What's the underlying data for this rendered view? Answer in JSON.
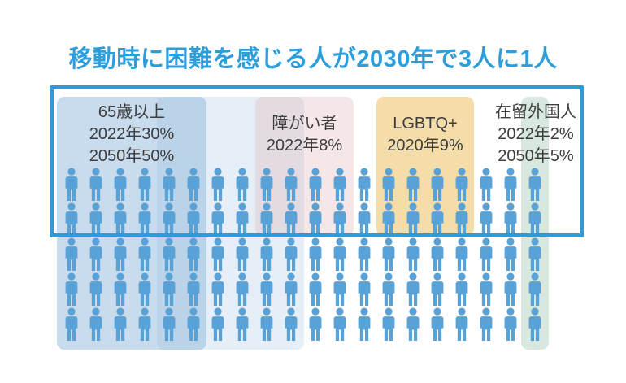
{
  "title": "移動時に困難を感じる人が2030年で3人に1人",
  "groups": [
    {
      "name": "65歳以上",
      "lines": [
        "65歳以上",
        "2022年30%",
        "2050年50%"
      ]
    },
    {
      "name": "障がい者",
      "lines": [
        "障がい者",
        "2022年8%"
      ]
    },
    {
      "name": "LGBTQ+",
      "lines": [
        "LGBTQ+",
        "2020年9%"
      ]
    },
    {
      "name": "在留外国人",
      "lines": [
        "在留外国人",
        "2022年2%",
        "2050年5%"
      ]
    }
  ],
  "chart_data": {
    "type": "pictograph",
    "title": "移動時に困難を感じる人が2030年で3人に1人",
    "icon": "person",
    "icon_color": "#58a2d8",
    "title_color": "#2e9edb",
    "text_color": "#3d3d3d",
    "grid": {
      "rows": 5,
      "cols": 20,
      "total_icons": 100,
      "icon_unit_pct": 1
    },
    "frame": {
      "meaning": "2030年で3人に1人",
      "encloses_rows": [
        1,
        2
      ],
      "color": "#2d9bd8"
    },
    "series": [
      {
        "name": "65歳以上",
        "values": [
          {
            "label": "2022年",
            "pct": 30
          },
          {
            "label": "2050年",
            "pct": 50
          }
        ],
        "panel_colors": [
          "#c9dcee",
          "#e6eff7"
        ]
      },
      {
        "name": "障がい者",
        "values": [
          {
            "label": "2022年",
            "pct": 8
          }
        ],
        "panel_colors": [
          "#f6e9e9"
        ]
      },
      {
        "name": "LGBTQ+",
        "values": [
          {
            "label": "2020年",
            "pct": 9
          }
        ],
        "panel_colors": [
          "#f5dfae"
        ]
      },
      {
        "name": "在留外国人",
        "values": [
          {
            "label": "2022年",
            "pct": 2
          },
          {
            "label": "2050年",
            "pct": 5
          }
        ],
        "panel_colors": [
          "#d8e8e0"
        ]
      }
    ],
    "legend_position": "labels-inside-panels",
    "grid_lines": false
  }
}
